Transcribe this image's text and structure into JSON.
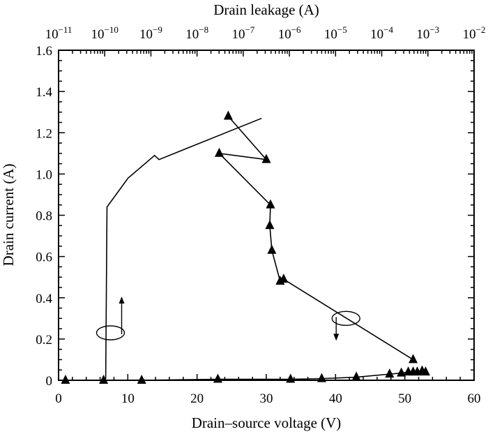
{
  "chart_data": {
    "type": "scatter",
    "xlabel": "Drain–source voltage (V)",
    "ylabel": "Drain current (A)",
    "x2label": "Drain leakage (A)",
    "xlim": [
      0,
      60
    ],
    "ylim": [
      0,
      1.6
    ],
    "x2lim_log10": [
      -11,
      -2
    ],
    "x_ticks": [
      0,
      10,
      20,
      30,
      40,
      50,
      60
    ],
    "x_tick_labels": [
      "0",
      "10",
      "20",
      "30",
      "40",
      "50",
      "60"
    ],
    "y_ticks": [
      0,
      0.2,
      0.4,
      0.6,
      0.8,
      1.0,
      1.2,
      1.4,
      1.6
    ],
    "y_tick_labels": [
      "0",
      "0.2",
      "0.4",
      "0.6",
      "0.8",
      "1.0",
      "1.2",
      "1.4",
      "1.6"
    ],
    "x2_ticks": [
      {
        "exp": -11,
        "base": "10",
        "sup": "−11"
      },
      {
        "exp": -10,
        "base": "10",
        "sup": "−10"
      },
      {
        "exp": -9,
        "base": "10",
        "sup": "−9"
      },
      {
        "exp": -8,
        "base": "10",
        "sup": "−8"
      },
      {
        "exp": -7,
        "base": "10",
        "sup": "−7"
      },
      {
        "exp": -6,
        "base": "10",
        "sup": "−6"
      },
      {
        "exp": -5,
        "base": "10",
        "sup": "−5"
      },
      {
        "exp": -4,
        "base": "10",
        "sup": "−4"
      },
      {
        "exp": -3,
        "base": "10",
        "sup": "−3"
      },
      {
        "exp": -2,
        "base": "10",
        "sup": "−2"
      }
    ],
    "series": [
      {
        "axis": "top-log-x",
        "marker": "none",
        "line": "solid",
        "x": [
          1e-10,
          1.05e-10,
          1.12e-10,
          3.2e-10,
          1.2e-09,
          1.5e-09,
          2.5e-07
        ],
        "y": [
          0.0,
          0.01,
          0.84,
          0.98,
          1.09,
          1.07,
          1.27
        ]
      },
      {
        "axis": "bottom-x",
        "marker": "triangle",
        "line": "solid",
        "x": [
          1,
          6.5,
          12,
          23,
          33.5,
          38,
          43,
          47.8,
          49.5,
          50.5,
          51.2,
          51.8,
          52.5,
          53
        ],
        "y": [
          0,
          0,
          0,
          0.005,
          0.005,
          0.008,
          0.015,
          0.03,
          0.035,
          0.04,
          0.04,
          0.04,
          0.045,
          0.04
        ]
      },
      {
        "axis": "bottom-x",
        "marker": "triangle",
        "line": "solid",
        "x": [
          24.5,
          30,
          23.2,
          30.6,
          30.5,
          30.8,
          32,
          32.5,
          51.2
        ],
        "y": [
          1.28,
          1.07,
          1.1,
          0.85,
          0.75,
          0.63,
          0.48,
          0.49,
          0.1
        ]
      }
    ],
    "annotations": [
      {
        "type": "loop-arrow",
        "points_to": "top-axis",
        "at": {
          "x": 7.5,
          "y": 0.23
        }
      },
      {
        "type": "loop-arrow",
        "points_to": "bottom-axis",
        "at": {
          "x": 41.5,
          "y": 0.3
        }
      }
    ]
  }
}
